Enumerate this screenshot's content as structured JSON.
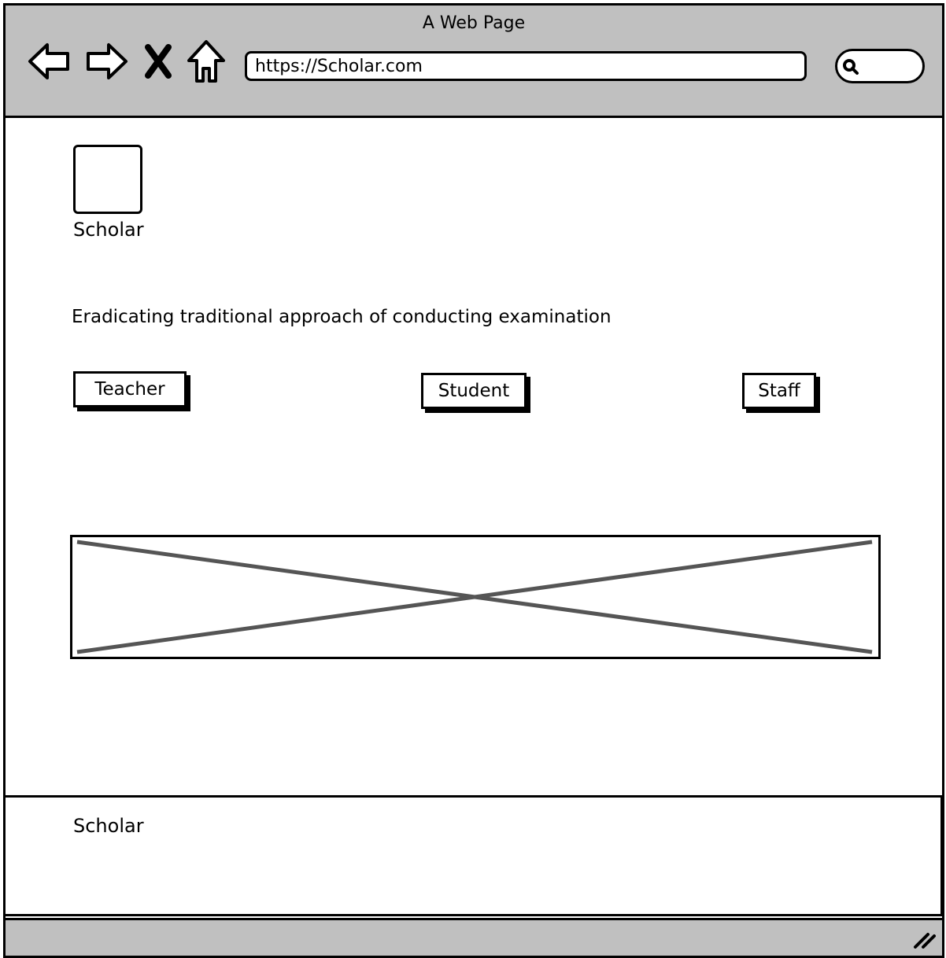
{
  "browser": {
    "title": "A Web Page",
    "url": "https://Scholar.com",
    "search_placeholder": ""
  },
  "icons": {
    "back": "back-arrow-icon",
    "forward": "forward-arrow-icon",
    "stop": "close-icon",
    "home": "home-icon",
    "search": "search-icon",
    "resize": "resize-grip-icon"
  },
  "header": {
    "logo_label": "Scholar"
  },
  "hero": {
    "tagline": "Eradicating traditional approach of conducting examination"
  },
  "roles": {
    "teacher": "Teacher",
    "student": "Student",
    "staff": "Staff"
  },
  "footer": {
    "text": "Scholar"
  },
  "colors": {
    "chrome": "#c0c0c0",
    "border": "#000000",
    "placeholder_cross": "#555555"
  }
}
